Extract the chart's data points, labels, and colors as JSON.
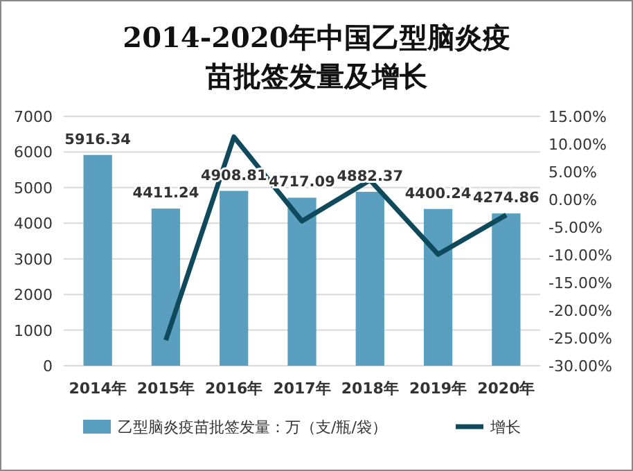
{
  "chart_data": {
    "type": "bar",
    "title": "2014-2020年中国乙型脑炎疫苗批签发量及增长",
    "categories": [
      "2014年",
      "2015年",
      "2016年",
      "2017年",
      "2018年",
      "2019年",
      "2020年"
    ],
    "series": [
      {
        "name": "乙型脑炎疫苗批签发量：万（支/瓶/袋）",
        "color": "#5a9fc0",
        "values": [
          5916.34,
          4411.24,
          4908.81,
          4717.09,
          4882.37,
          4400.24,
          4274.86
        ],
        "value_labels": [
          "5916.34",
          "4411.24",
          "4908.81",
          "4717.09",
          "4882.37",
          "4400.24",
          "4274.86"
        ]
      },
      {
        "name": "增长",
        "type": "line",
        "axis": "y2",
        "color": "#0f4a5c",
        "values": [
          null,
          -25.4,
          11.3,
          -3.9,
          3.5,
          -9.9,
          -2.8
        ]
      }
    ],
    "ylim": [
      0,
      7000
    ],
    "yticks": [
      0,
      1000,
      2000,
      3000,
      4000,
      5000,
      6000,
      7000
    ],
    "y2lim": [
      -30,
      15
    ],
    "y2ticks": [
      {
        "value": -30,
        "label": "-30.00%"
      },
      {
        "value": -25,
        "label": "-25.00%"
      },
      {
        "value": -20,
        "label": "-20.00%"
      },
      {
        "value": -15,
        "label": "-15.00%"
      },
      {
        "value": -10,
        "label": "-10.00%"
      },
      {
        "value": -5,
        "label": "-5.00%"
      },
      {
        "value": 0,
        "label": "0.00%"
      },
      {
        "value": 5,
        "label": "5.00%"
      },
      {
        "value": 10,
        "label": "10.00%"
      },
      {
        "value": 15,
        "label": "15.00%"
      }
    ],
    "grid": "y",
    "legend": "bottom",
    "marker": "none"
  }
}
